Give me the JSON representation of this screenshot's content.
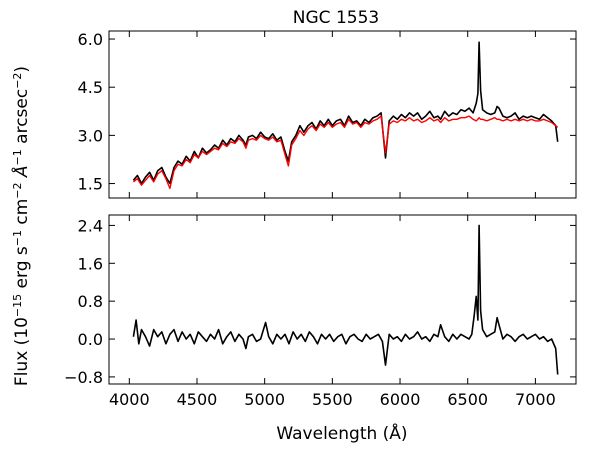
{
  "chart_data": [
    {
      "type": "line",
      "title": "NGC 1553",
      "xlabel": "",
      "ylabel": "",
      "xlim": [
        3850,
        7300
      ],
      "ylim": [
        1.05,
        6.25
      ],
      "yticks": [
        1.5,
        3.0,
        4.5,
        6.0
      ],
      "yticklabels": [
        "1.5",
        "3.0",
        "4.5",
        "6.0"
      ],
      "xticks": [
        4000,
        4500,
        5000,
        5500,
        6000,
        6500,
        7000
      ],
      "series": [
        {
          "color": "#000000",
          "x": [
            4030,
            4060,
            4090,
            4120,
            4150,
            4180,
            4210,
            4240,
            4270,
            4300,
            4330,
            4360,
            4390,
            4420,
            4450,
            4480,
            4510,
            4540,
            4570,
            4600,
            4630,
            4660,
            4690,
            4720,
            4750,
            4780,
            4810,
            4840,
            4861,
            4880,
            4910,
            4940,
            4970,
            5000,
            5030,
            5060,
            5090,
            5120,
            5150,
            5175,
            5200,
            5230,
            5260,
            5290,
            5320,
            5350,
            5380,
            5410,
            5440,
            5470,
            5500,
            5530,
            5560,
            5590,
            5620,
            5650,
            5680,
            5710,
            5740,
            5770,
            5800,
            5830,
            5860,
            5893,
            5920,
            5950,
            5980,
            6010,
            6040,
            6070,
            6100,
            6130,
            6160,
            6190,
            6220,
            6250,
            6280,
            6300,
            6330,
            6360,
            6390,
            6420,
            6450,
            6480,
            6510,
            6540,
            6563,
            6575,
            6584,
            6595,
            6610,
            6640,
            6670,
            6700,
            6717,
            6731,
            6760,
            6790,
            6820,
            6850,
            6880,
            6910,
            6940,
            6970,
            7000,
            7030,
            7060,
            7090,
            7120,
            7150,
            7165
          ],
          "y": [
            1.6,
            1.75,
            1.5,
            1.7,
            1.85,
            1.6,
            1.9,
            2.0,
            1.7,
            1.5,
            2.0,
            2.2,
            2.1,
            2.35,
            2.2,
            2.5,
            2.3,
            2.6,
            2.45,
            2.55,
            2.7,
            2.6,
            2.85,
            2.7,
            2.9,
            2.8,
            3.0,
            2.85,
            2.7,
            2.95,
            3.0,
            2.9,
            3.1,
            2.95,
            2.9,
            3.05,
            2.85,
            2.95,
            2.5,
            2.2,
            2.8,
            3.0,
            3.3,
            3.1,
            3.3,
            3.4,
            3.2,
            3.45,
            3.3,
            3.5,
            3.3,
            3.45,
            3.5,
            3.3,
            3.6,
            3.4,
            3.45,
            3.3,
            3.5,
            3.4,
            3.55,
            3.6,
            3.7,
            2.3,
            3.45,
            3.6,
            3.5,
            3.65,
            3.55,
            3.7,
            3.6,
            3.7,
            3.5,
            3.6,
            3.75,
            3.55,
            3.6,
            3.5,
            3.75,
            3.6,
            3.7,
            3.65,
            3.8,
            3.75,
            3.85,
            3.7,
            4.0,
            4.3,
            5.9,
            4.4,
            3.8,
            3.7,
            3.65,
            3.7,
            3.9,
            3.85,
            3.6,
            3.55,
            3.6,
            3.7,
            3.5,
            3.6,
            3.55,
            3.6,
            3.55,
            3.5,
            3.65,
            3.55,
            3.45,
            3.3,
            2.8
          ]
        },
        {
          "color": "#ff0000",
          "x": [
            4030,
            4060,
            4090,
            4120,
            4150,
            4180,
            4210,
            4240,
            4270,
            4300,
            4330,
            4360,
            4390,
            4420,
            4450,
            4480,
            4510,
            4540,
            4570,
            4600,
            4630,
            4660,
            4690,
            4720,
            4750,
            4780,
            4810,
            4840,
            4861,
            4880,
            4910,
            4940,
            4970,
            5000,
            5030,
            5060,
            5090,
            5120,
            5150,
            5175,
            5200,
            5230,
            5260,
            5290,
            5320,
            5350,
            5380,
            5410,
            5440,
            5470,
            5500,
            5530,
            5560,
            5590,
            5620,
            5650,
            5680,
            5710,
            5740,
            5770,
            5800,
            5830,
            5860,
            5893,
            5920,
            5950,
            5980,
            6010,
            6040,
            6070,
            6100,
            6130,
            6160,
            6190,
            6220,
            6250,
            6280,
            6300,
            6330,
            6360,
            6390,
            6420,
            6450,
            6480,
            6510,
            6540,
            6563,
            6575,
            6584,
            6595,
            6610,
            6640,
            6670,
            6700,
            6717,
            6731,
            6760,
            6790,
            6820,
            6850,
            6880,
            6910,
            6940,
            6970,
            7000,
            7030,
            7060,
            7090,
            7120,
            7150,
            7165
          ],
          "y": [
            1.55,
            1.65,
            1.45,
            1.6,
            1.75,
            1.55,
            1.8,
            1.9,
            1.65,
            1.35,
            1.9,
            2.1,
            2.05,
            2.25,
            2.15,
            2.4,
            2.3,
            2.5,
            2.4,
            2.5,
            2.6,
            2.55,
            2.75,
            2.65,
            2.8,
            2.75,
            2.9,
            2.8,
            2.6,
            2.85,
            2.9,
            2.85,
            3.0,
            2.9,
            2.85,
            2.95,
            2.8,
            2.85,
            2.4,
            2.05,
            2.7,
            2.9,
            3.15,
            3.0,
            3.2,
            3.3,
            3.15,
            3.35,
            3.25,
            3.4,
            3.25,
            3.35,
            3.4,
            3.25,
            3.5,
            3.35,
            3.4,
            3.25,
            3.4,
            3.35,
            3.45,
            3.5,
            3.6,
            2.45,
            3.35,
            3.45,
            3.4,
            3.5,
            3.45,
            3.55,
            3.45,
            3.5,
            3.4,
            3.45,
            3.55,
            3.45,
            3.5,
            3.4,
            3.55,
            3.45,
            3.5,
            3.5,
            3.55,
            3.55,
            3.6,
            3.5,
            3.45,
            3.5,
            3.55,
            3.5,
            3.5,
            3.45,
            3.5,
            3.55,
            3.5,
            3.5,
            3.45,
            3.5,
            3.45,
            3.5,
            3.45,
            3.5,
            3.45,
            3.5,
            3.45,
            3.45,
            3.5,
            3.45,
            3.4,
            3.3,
            3.25
          ]
        }
      ]
    },
    {
      "type": "line",
      "title": "",
      "xlabel": "Wavelength (Å)",
      "ylabel": "",
      "xlim": [
        3850,
        7300
      ],
      "ylim": [
        -0.95,
        2.62
      ],
      "yticks": [
        -0.8,
        0.0,
        0.8,
        1.6,
        2.4
      ],
      "yticklabels": [
        "−0.8",
        "0.0",
        "0.8",
        "1.6",
        "2.4"
      ],
      "xticks": [
        4000,
        4500,
        5000,
        5500,
        6000,
        6500,
        7000
      ],
      "xticklabels": [
        "4000",
        "4500",
        "5000",
        "5500",
        "6000",
        "6500",
        "7000"
      ],
      "series": [
        {
          "color": "#000000",
          "x": [
            4030,
            4050,
            4070,
            4090,
            4120,
            4150,
            4180,
            4210,
            4240,
            4270,
            4300,
            4330,
            4360,
            4390,
            4420,
            4450,
            4480,
            4510,
            4540,
            4570,
            4600,
            4630,
            4660,
            4690,
            4720,
            4750,
            4780,
            4810,
            4840,
            4861,
            4880,
            4910,
            4940,
            4970,
            5007,
            5030,
            5060,
            5090,
            5120,
            5150,
            5180,
            5210,
            5240,
            5270,
            5300,
            5330,
            5360,
            5390,
            5420,
            5450,
            5480,
            5510,
            5540,
            5570,
            5600,
            5630,
            5660,
            5690,
            5720,
            5750,
            5780,
            5810,
            5840,
            5870,
            5893,
            5920,
            5950,
            5980,
            6010,
            6040,
            6070,
            6100,
            6130,
            6160,
            6190,
            6220,
            6250,
            6280,
            6300,
            6330,
            6360,
            6390,
            6420,
            6450,
            6480,
            6510,
            6530,
            6548,
            6563,
            6575,
            6584,
            6595,
            6610,
            6640,
            6670,
            6700,
            6717,
            6731,
            6760,
            6790,
            6820,
            6850,
            6880,
            6910,
            6940,
            6970,
            7000,
            7030,
            7060,
            7090,
            7120,
            7150,
            7165
          ],
          "y": [
            0.05,
            0.4,
            -0.1,
            0.2,
            0.05,
            -0.15,
            0.2,
            0.05,
            0.15,
            -0.1,
            0.1,
            0.2,
            -0.05,
            0.15,
            0.0,
            0.1,
            -0.1,
            0.15,
            0.05,
            -0.05,
            0.1,
            0.0,
            0.2,
            -0.1,
            0.05,
            0.15,
            -0.05,
            0.1,
            0.0,
            -0.2,
            0.05,
            0.1,
            -0.05,
            0.0,
            0.35,
            0.05,
            -0.1,
            0.1,
            0.0,
            0.1,
            -0.1,
            0.15,
            0.0,
            0.1,
            -0.05,
            0.15,
            0.05,
            -0.1,
            0.1,
            0.0,
            0.1,
            -0.05,
            0.05,
            0.1,
            -0.1,
            0.05,
            0.1,
            0.0,
            -0.05,
            0.1,
            0.0,
            0.05,
            0.1,
            -0.05,
            -0.55,
            0.1,
            0.0,
            0.05,
            -0.05,
            0.1,
            0.0,
            0.05,
            0.15,
            0.0,
            0.05,
            -0.05,
            0.1,
            0.05,
            0.3,
            0.05,
            -0.05,
            0.1,
            0.0,
            0.1,
            0.05,
            0.0,
            0.1,
            0.5,
            0.9,
            0.4,
            2.4,
            0.6,
            0.2,
            0.05,
            0.1,
            0.15,
            0.45,
            0.3,
            0.0,
            0.1,
            0.05,
            -0.05,
            0.05,
            0.1,
            0.0,
            0.05,
            0.1,
            0.0,
            0.05,
            -0.05,
            0.0,
            -0.2,
            -0.75
          ]
        }
      ]
    }
  ],
  "figure": {
    "ylabel": "Flux (10",
    "ylabel_exp1": "−15",
    "ylabel_mid": " erg s",
    "ylabel_exp2": "−1",
    "ylabel_mid2": " cm",
    "ylabel_exp3": "−2",
    "ylabel_mid3": " Å",
    "ylabel_exp4": "−1",
    "ylabel_mid4": " arcsec",
    "ylabel_exp5": "−2",
    "ylabel_end": ")"
  }
}
